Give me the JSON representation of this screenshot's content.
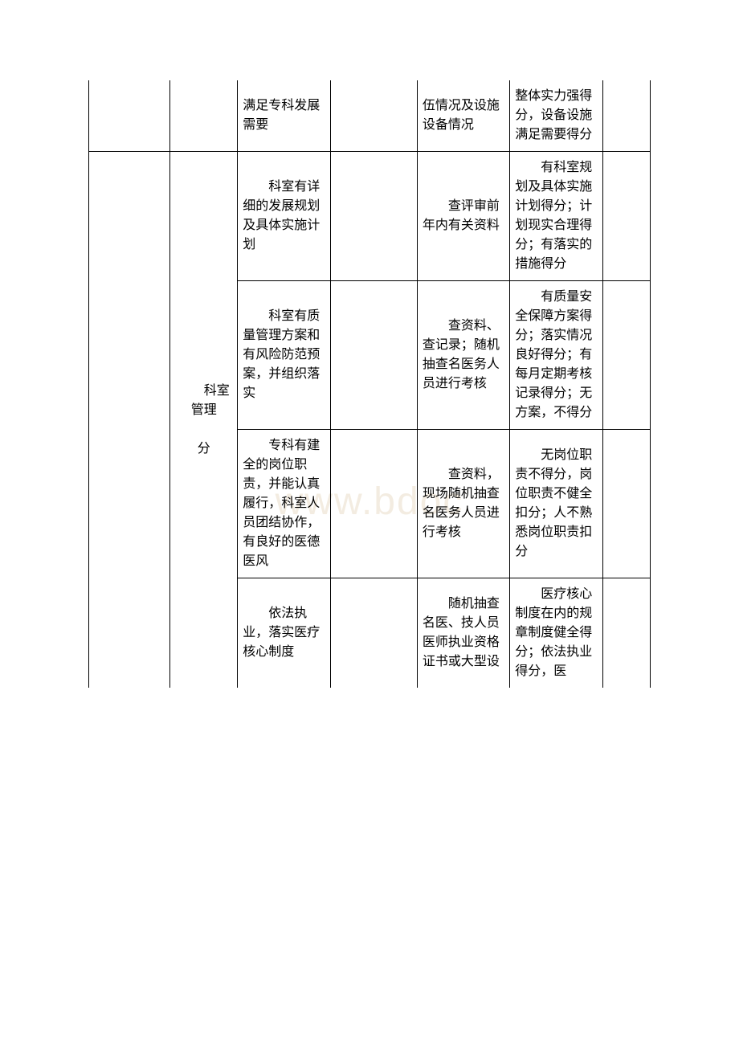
{
  "table": {
    "border_color": "#000000",
    "background_color": "#ffffff",
    "text_color": "#000000",
    "font_size": 16,
    "columns": [
      "col1",
      "col2",
      "col3",
      "col4",
      "col5",
      "col6",
      "col7"
    ],
    "rows": [
      {
        "c1": "",
        "c2": "",
        "c3": "满足专科发展需要",
        "c4": "",
        "c5": "伍情况及设施设备情况",
        "c6": "整体实力强得分，设备设施满足需要得分",
        "c7": ""
      },
      {
        "c1": "",
        "c2_label": "科室管理",
        "c2_unit": "分",
        "c3": "科室有详细的发展规划及具体实施计划",
        "c4": "",
        "c5": "查评审前年内有关资料",
        "c6": "有科室规划及具体实施计划得分；计划现实合理得分；有落实的措施得分",
        "c7": ""
      },
      {
        "c3": "科室有质量管理方案和有风险防范预案，并组织落实",
        "c4": "",
        "c5": "查资料、查记录；随机抽查名医务人员进行考核",
        "c6": "有质量安全保障方案得分；落实情况良好得分；有每月定期考核记录得分；无方案，不得分",
        "c7": ""
      },
      {
        "c3": "专科有建全的岗位职责，并能认真履行，科室人员团结协作，有良好的医德医风",
        "c4": "",
        "c5": "查资料，现场随机抽查名医务人员进行考核",
        "c6": "无岗位职责不得分，岗位职责不健全扣分；人不熟悉岗位职责扣分",
        "c7": ""
      },
      {
        "c3": "依法执业，落实医疗核心制度",
        "c4": "",
        "c5": "随机抽查名医、技人员医师执业资格证书或大型设",
        "c6": "医疗核心制度在内的规章制度健全得分；依法执业得分，医",
        "c7": ""
      }
    ]
  },
  "watermark": "www.bdoc"
}
